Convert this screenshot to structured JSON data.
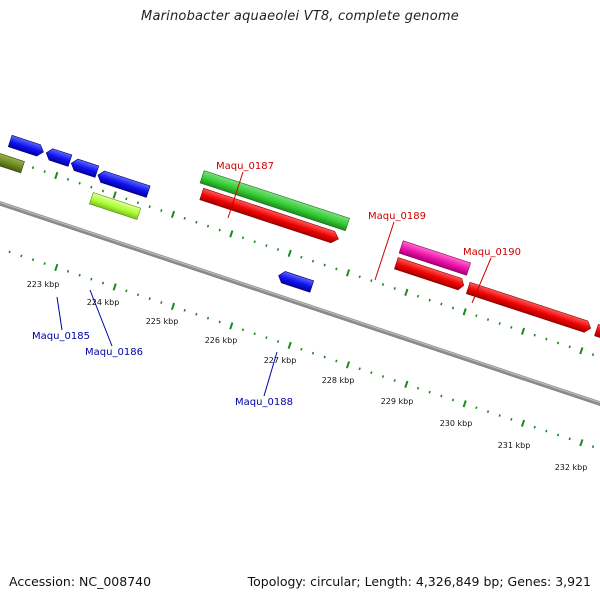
{
  "title": "Marinobacter aquaeolei VT8, complete genome",
  "footer": {
    "accession": "Accession: NC_008740",
    "summary": "Topology: circular; Length: 4,326,849 bp; Genes: 3,921"
  },
  "scale": {
    "tick_labels": [
      "223 kbp",
      "224 kbp",
      "225 kbp",
      "226 kbp",
      "227 kbp",
      "228 kbp",
      "229 kbp",
      "230 kbp",
      "231 kbp",
      "232 kbp"
    ]
  },
  "colors": {
    "backbone": "#888888",
    "ruler": "#1a8a1a",
    "forward_label": "#cc0000",
    "reverse_label": "#0000aa"
  },
  "genes": [
    {
      "id": "Maqu_0185",
      "label": "Maqu_0185",
      "strand": "reverse",
      "color": "#1010ee",
      "labeled": true
    },
    {
      "id": "Maqu_0186",
      "label": "Maqu_0186",
      "strand": "reverse",
      "color": "#aaff33",
      "labeled": true
    },
    {
      "id": "Maqu_0187",
      "label": "Maqu_0187",
      "strand": "forward",
      "color": "#33cc33",
      "labeled": true
    },
    {
      "id": "Maqu_0188",
      "label": "Maqu_0188",
      "strand": "reverse",
      "color": "#1010ee",
      "labeled": true
    },
    {
      "id": "Maqu_0189",
      "label": "Maqu_0189",
      "strand": "forward",
      "color": "#ee10aa",
      "labeled": true
    },
    {
      "id": "Maqu_0190",
      "label": "Maqu_0190",
      "strand": "forward",
      "color": "#ee0000",
      "labeled": true
    }
  ]
}
